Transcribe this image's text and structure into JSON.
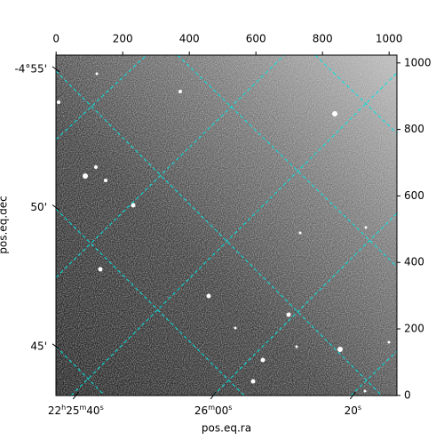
{
  "chart_data": {
    "type": "image",
    "xlabel": "pos.eq.ra",
    "ylabel": "pos.eq.dec",
    "xlim": [
      -0.5,
      1023.5
    ],
    "ylim": [
      -0.5,
      1023.5
    ],
    "xticks": [
      0,
      200,
      400,
      600,
      800,
      1000
    ],
    "yticks": [
      0,
      200,
      400,
      600,
      800,
      1000
    ],
    "ra_ticks": [
      {
        "value": 59,
        "label": "22h25m40s"
      },
      {
        "value": 472,
        "label": "26m00s"
      },
      {
        "value": 891,
        "label": "20s"
      }
    ],
    "dec_ticks": [
      {
        "value": 981,
        "label": "-4°55'"
      },
      {
        "value": 565,
        "label": "50'"
      },
      {
        "value": 147,
        "label": "45'"
      }
    ],
    "grid_color": "#00e5e5"
  }
}
